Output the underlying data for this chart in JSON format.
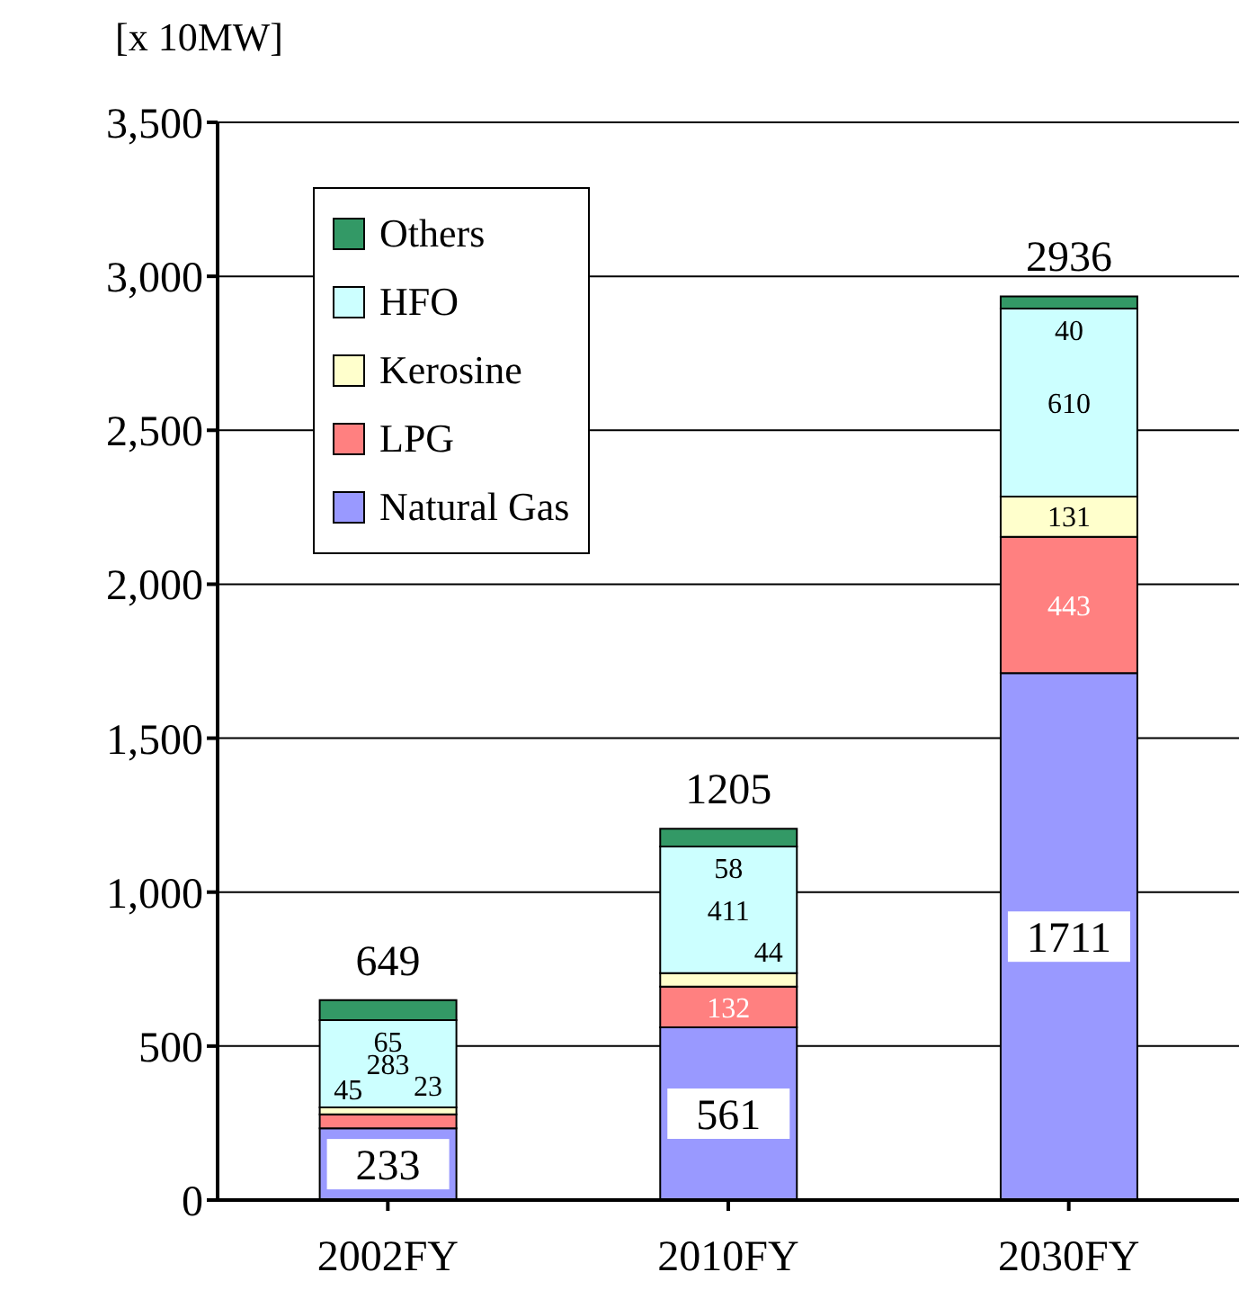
{
  "chart_data": {
    "type": "bar",
    "stacked": true,
    "ylabel": "[x 10MW]",
    "categories": [
      "2002FY",
      "2010FY",
      "2030FY"
    ],
    "series": [
      {
        "name": "Natural Gas",
        "color": "#9999ff",
        "values": [
          233,
          561,
          1711
        ]
      },
      {
        "name": "LPG",
        "color": "#ff8080",
        "values": [
          45,
          132,
          443
        ]
      },
      {
        "name": "Kerosine",
        "color": "#ffffcc",
        "values": [
          23,
          44,
          131
        ]
      },
      {
        "name": "HFO",
        "color": "#ccffff",
        "values": [
          283,
          411,
          610
        ]
      },
      {
        "name": "Others",
        "color": "#339966",
        "values": [
          65,
          58,
          40
        ]
      }
    ],
    "totals": [
      "649",
      "1205",
      "2936"
    ],
    "ylim": [
      0,
      3500
    ],
    "yticks": [
      {
        "value": 0,
        "label": "0"
      },
      {
        "value": 500,
        "label": "500"
      },
      {
        "value": 1000,
        "label": "1,000"
      },
      {
        "value": 1500,
        "label": "1,500"
      },
      {
        "value": 2000,
        "label": "2,000"
      },
      {
        "value": 2500,
        "label": "2,500"
      },
      {
        "value": 3000,
        "label": "3,000"
      },
      {
        "value": 3500,
        "label": "3,500"
      }
    ],
    "grid": "y",
    "legend": "top left",
    "data_labels": true
  }
}
